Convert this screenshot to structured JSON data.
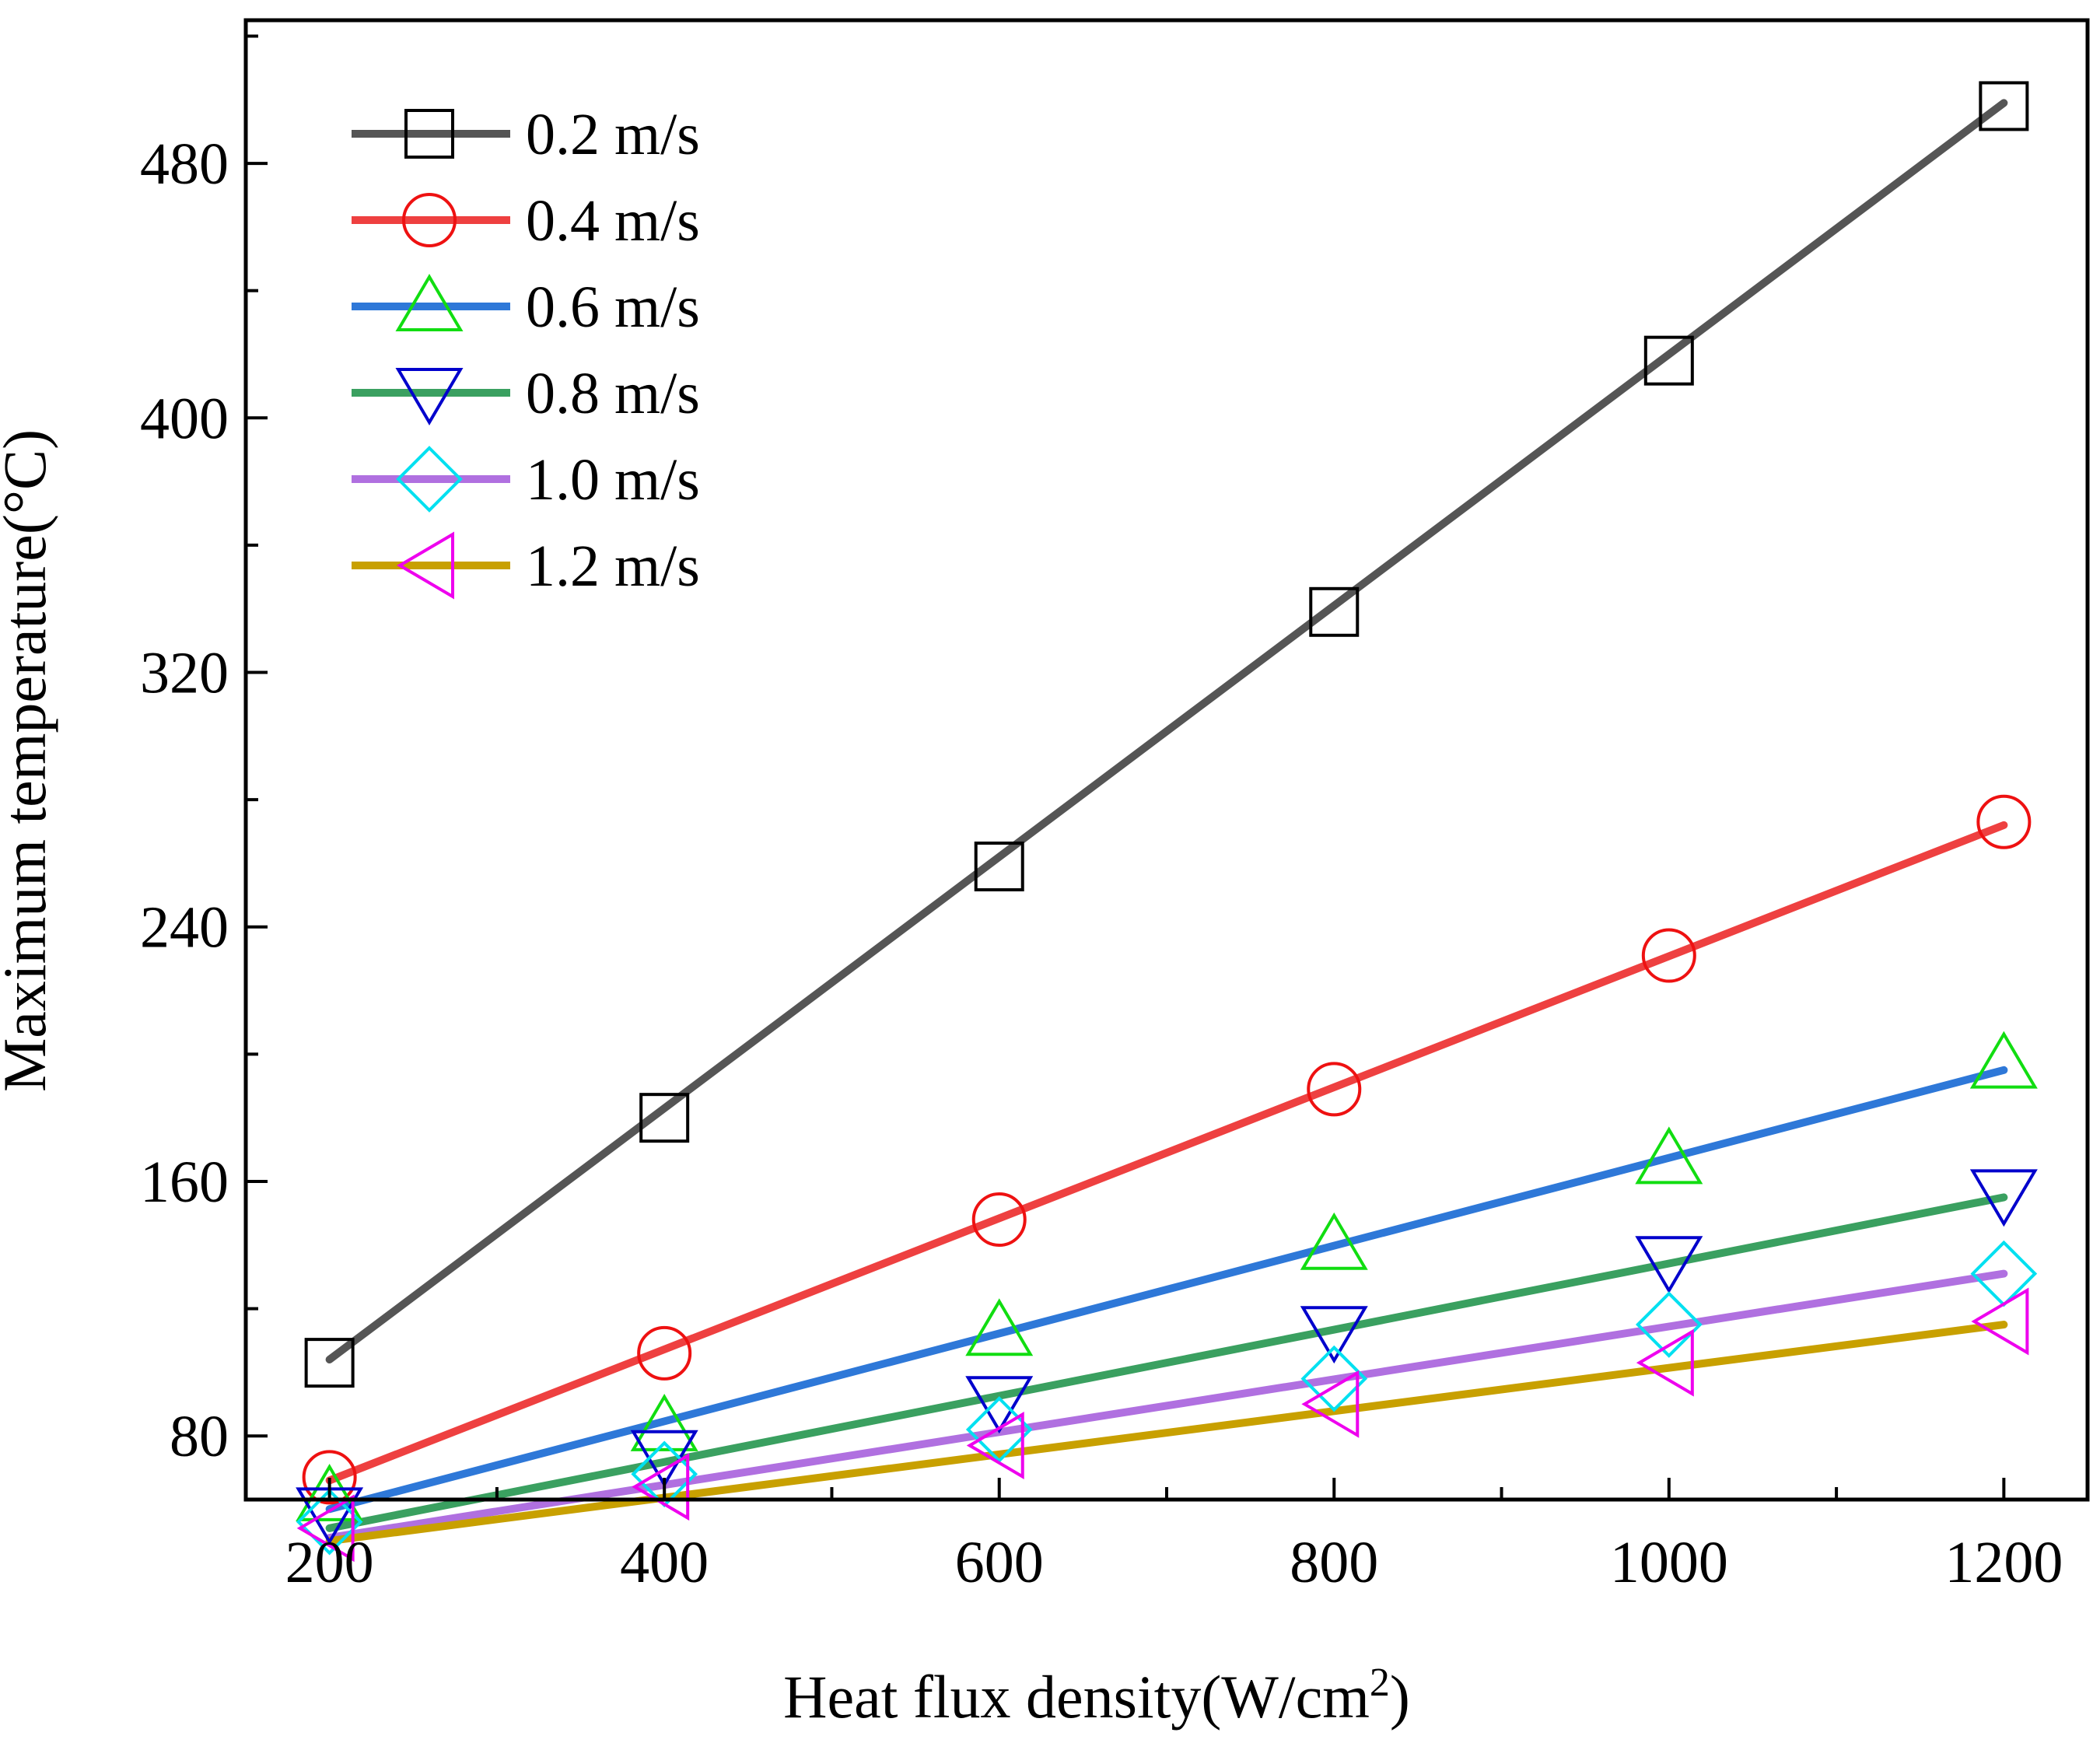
{
  "chart_data": {
    "type": "line",
    "title": "",
    "xlabel": "Heat flux density(W/cm",
    "xlabel_superscript": "2",
    "xlabel_suffix": ")",
    "ylabel": "Maximum temperature(°C)",
    "x": [
      200,
      400,
      600,
      800,
      1000,
      1200
    ],
    "xlim": [
      150,
      1250
    ],
    "ylim": [
      60,
      525
    ],
    "xticks": [
      200,
      400,
      600,
      800,
      1000,
      1200
    ],
    "yticks": [
      80,
      160,
      240,
      320,
      400,
      480
    ],
    "grid": false,
    "legend_position": "top-left",
    "series": [
      {
        "name": "0.2 m/s",
        "line_color": "#555555",
        "marker": "square",
        "marker_color": "#000000",
        "values": [
          103,
          180,
          259,
          339,
          418,
          498
        ],
        "fit": [
          104,
          499
        ]
      },
      {
        "name": "0.4 m/s",
        "line_color": "#EE4040",
        "marker": "circle",
        "marker_color": "#EE1111",
        "values": [
          67,
          106,
          148,
          189,
          231,
          273
        ],
        "fit": [
          66,
          272
        ]
      },
      {
        "name": "0.6 m/s",
        "line_color": "#2E78D8",
        "marker": "triangle-up",
        "marker_color": "#11DD11",
        "values": [
          61,
          83,
          113,
          140,
          167,
          197
        ],
        "fit": [
          57,
          195
        ]
      },
      {
        "name": "0.8 m/s",
        "line_color": "#3AA060",
        "marker": "triangle-down",
        "marker_color": "#0000CC",
        "values": [
          56,
          74,
          91,
          113,
          135,
          156
        ],
        "fit": [
          51,
          155
        ]
      },
      {
        "name": "1.0 m/s",
        "line_color": "#B070E0",
        "marker": "diamond",
        "marker_color": "#00E0F0",
        "values": [
          53,
          68,
          82,
          98,
          115,
          131
        ],
        "fit": [
          48,
          131
        ]
      },
      {
        "name": "1.2 m/s",
        "line_color": "#C8A000",
        "marker": "triangle-left",
        "marker_color": "#EE00EE",
        "values": [
          51,
          64,
          77,
          90,
          103,
          116
        ],
        "fit": [
          47,
          115
        ]
      }
    ]
  }
}
